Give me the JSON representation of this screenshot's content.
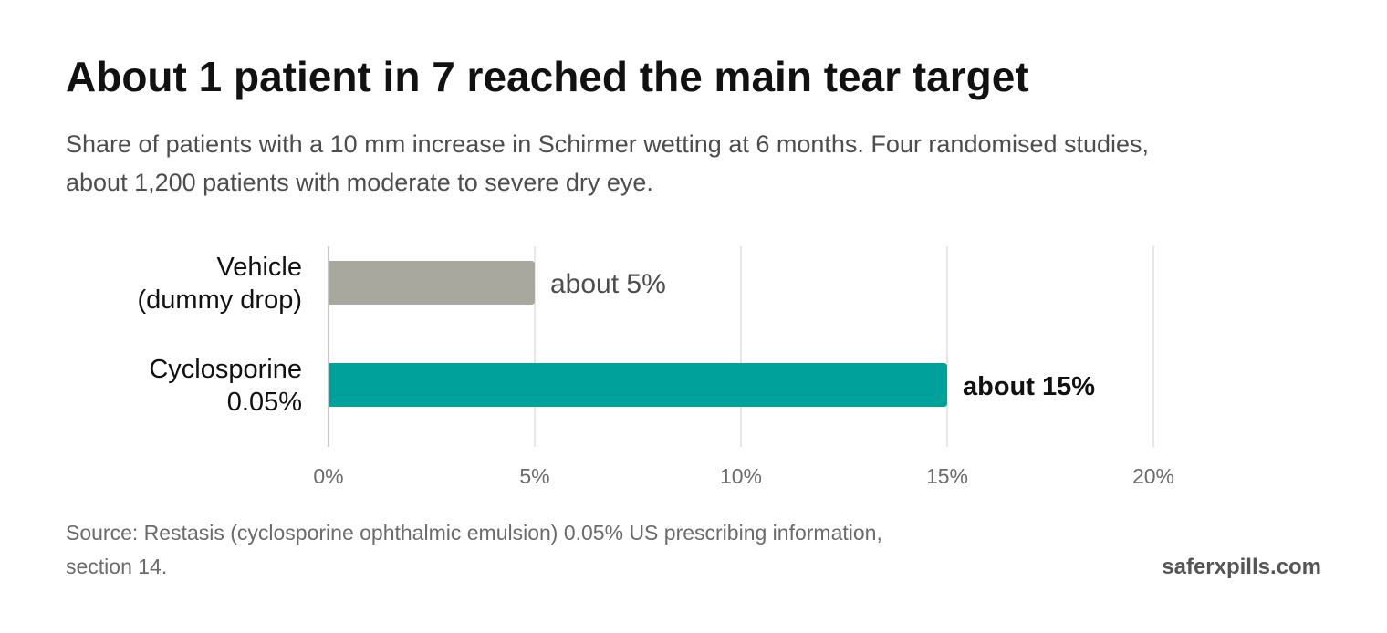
{
  "header": {
    "title": "About 1 patient in 7 reached the main tear target",
    "subtitle": "Share of patients with a 10 mm increase in Schirmer wetting at 6 months. Four randomised studies, about 1,200 patients with moderate to severe dry eye."
  },
  "chart_data": {
    "type": "bar",
    "orientation": "horizontal",
    "categories": [
      [
        "Vehicle",
        "(dummy drop)"
      ],
      [
        "Cyclosporine",
        "0.05%"
      ]
    ],
    "values": [
      5,
      15
    ],
    "value_labels": [
      "about 5%",
      "about 15%"
    ],
    "highlight": [
      false,
      true
    ],
    "colors": [
      "#a8a89f",
      "#00a19a"
    ],
    "xlim": [
      0,
      20
    ],
    "xticks": [
      0,
      5,
      10,
      15,
      20
    ],
    "xtick_labels": [
      "0%",
      "5%",
      "10%",
      "15%",
      "20%"
    ],
    "grid": true,
    "legend": "none"
  },
  "footer": {
    "source": "Source: Restasis (cyclosporine ophthalmic emulsion) 0.05% US prescribing information, section 14.",
    "brand": "saferxpills.com"
  }
}
